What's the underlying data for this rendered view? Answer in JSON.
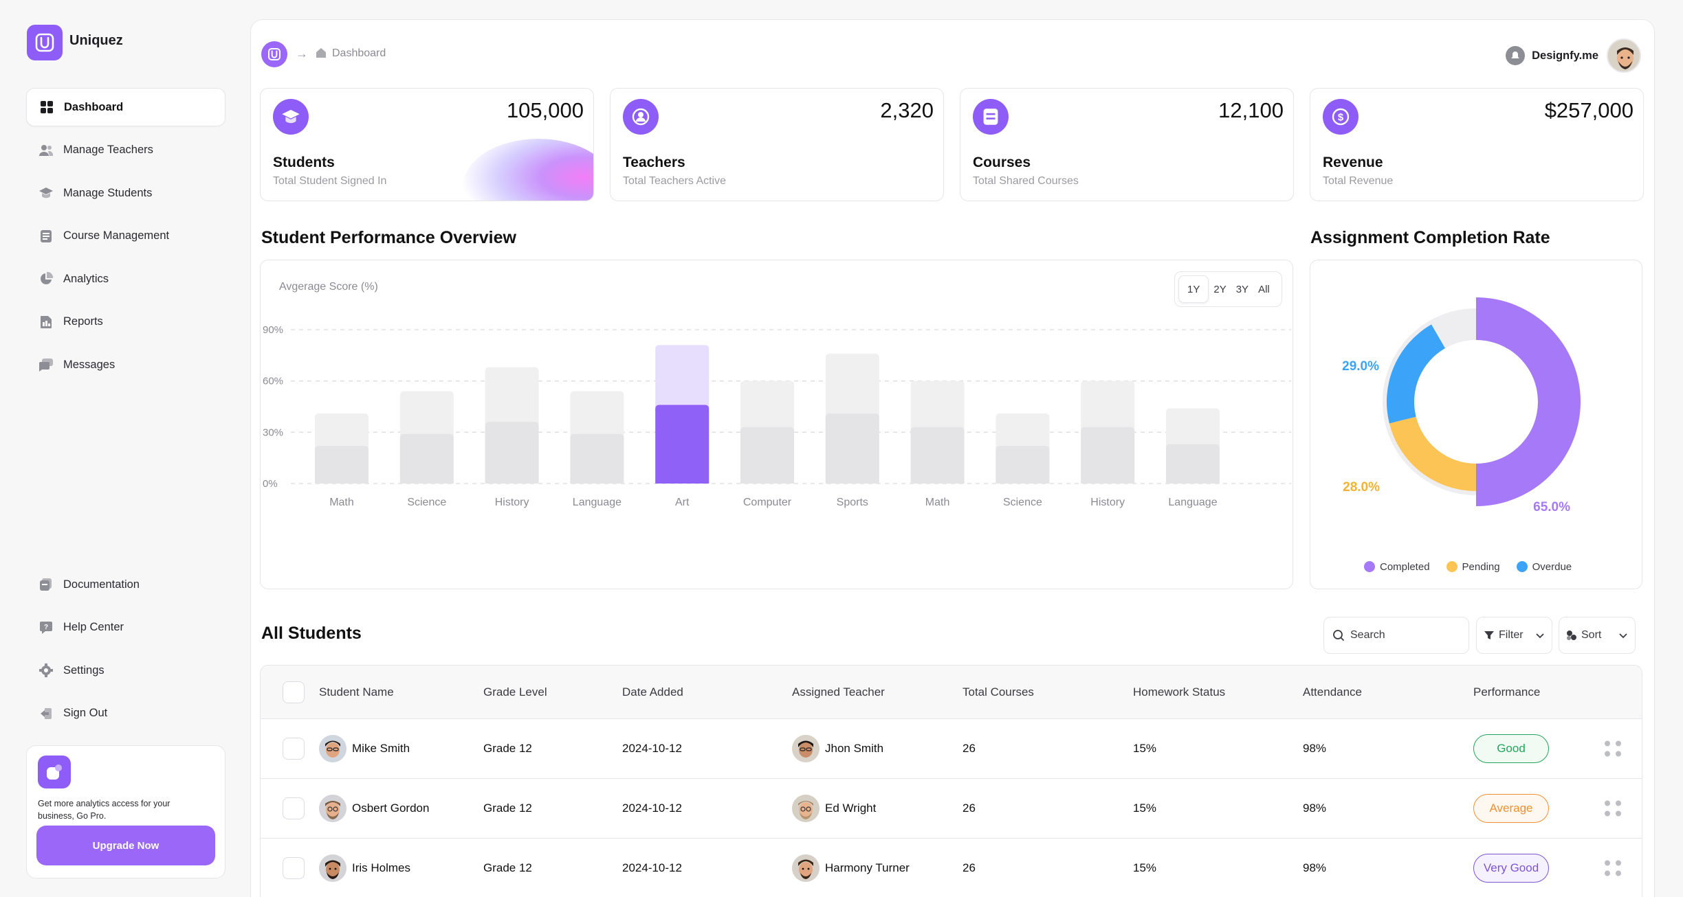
{
  "app": {
    "name": "Uniquez"
  },
  "sidebar": {
    "items": [
      {
        "label": "Dashboard",
        "icon": "grid-icon",
        "active": true
      },
      {
        "label": "Manage Teachers",
        "icon": "users-icon"
      },
      {
        "label": "Manage Students",
        "icon": "graduation-cap-icon"
      },
      {
        "label": "Course Management",
        "icon": "book-icon"
      },
      {
        "label": "Analytics",
        "icon": "pie-chart-icon"
      },
      {
        "label": "Reports",
        "icon": "report-icon"
      },
      {
        "label": "Messages",
        "icon": "message-icon"
      }
    ],
    "bottom_items": [
      {
        "label": "Documentation",
        "icon": "documentation-icon"
      },
      {
        "label": "Help Center",
        "icon": "help-icon"
      },
      {
        "label": "Settings",
        "icon": "gear-icon"
      },
      {
        "label": "Sign Out",
        "icon": "sign-out-icon"
      }
    ],
    "promo": {
      "text": "Get more analytics access for your business, Go Pro.",
      "button": "Upgrade Now"
    }
  },
  "header": {
    "breadcrumb": "Dashboard",
    "user_name": "Designfy.me"
  },
  "stats": [
    {
      "value": "105,000",
      "title": "Students",
      "subtitle": "Total Student Signed In",
      "icon": "graduation-cap-icon"
    },
    {
      "value": "2,320",
      "title": "Teachers",
      "subtitle": "Total Teachers Active",
      "icon": "teacher-icon"
    },
    {
      "value": "12,100",
      "title": "Courses",
      "subtitle": "Total Shared Courses",
      "icon": "book-icon"
    },
    {
      "value": "$257,000",
      "title": "Revenue",
      "subtitle": "Total Revenue",
      "icon": "dollar-icon"
    }
  ],
  "performance": {
    "title": "Student Performance Overview",
    "ranges": [
      "1Y",
      "2Y",
      "3Y",
      "All"
    ],
    "active_range": "1Y"
  },
  "assignment": {
    "title": "Assignment Completion Rate"
  },
  "chart_data": [
    {
      "type": "bar",
      "title": "Student Performance Overview",
      "ylabel": "Avgerage Score (%)",
      "ylim": [
        0,
        90
      ],
      "yticks": [
        "0%",
        "30%",
        "60%",
        "90%"
      ],
      "grid": true,
      "categories": [
        "Math",
        "Science",
        "History",
        "Language",
        "Art",
        "Computer",
        "Sports",
        "Math",
        "Science",
        "History",
        "Language"
      ],
      "highlighted_index": 4,
      "series": [
        {
          "values": [
            22,
            29,
            36,
            29,
            46,
            33,
            41,
            33,
            22,
            33,
            23
          ],
          "color": "#e4e4e7",
          "highlight_color": "#9061f6"
        },
        {
          "values": [
            41,
            54,
            68,
            54,
            81,
            60,
            76,
            60,
            41,
            60,
            44
          ],
          "color": "#f0f0f1",
          "highlight_color": "#e7ddfc"
        }
      ]
    },
    {
      "type": "pie",
      "title": "Assignment Completion Rate",
      "legend_position": "bottom",
      "series": [
        {
          "name": "Completed",
          "value": 65.0,
          "label": "65.0%",
          "color": "#a579f8"
        },
        {
          "name": "Pending",
          "value": 28.0,
          "label": "28.0%",
          "color": "#fbc455"
        },
        {
          "name": "Overdue",
          "value": 29.0,
          "label": "29.0%",
          "color": "#3ba3f8"
        }
      ]
    }
  ],
  "students": {
    "title": "All Students",
    "search_placeholder": "Search",
    "filter_label": "Filter",
    "sort_label": "Sort",
    "columns": [
      "Student Name",
      "Grade Level",
      "Date Added",
      "Assigned Teacher",
      "Total Courses",
      "Homework Status",
      "Attendance",
      "Performance"
    ],
    "rows": [
      {
        "name": "Mike Smith",
        "grade": "Grade 12",
        "date": "2024-10-12",
        "teacher": "Jhon Smith",
        "courses": "26",
        "homework": "15%",
        "attendance": "98%",
        "performance": "Good"
      },
      {
        "name": "Osbert Gordon",
        "grade": "Grade 12",
        "date": "2024-10-12",
        "teacher": "Ed Wright",
        "courses": "26",
        "homework": "15%",
        "attendance": "98%",
        "performance": "Average"
      },
      {
        "name": "Iris Holmes",
        "grade": "Grade 12",
        "date": "2024-10-12",
        "teacher": "Harmony Turner",
        "courses": "26",
        "homework": "15%",
        "attendance": "98%",
        "performance": "Very Good"
      }
    ]
  },
  "colors": {
    "accent": "#8e5cf7",
    "good": "#22a55a",
    "average": "#f2902f",
    "very_good": "#7d53d8"
  }
}
